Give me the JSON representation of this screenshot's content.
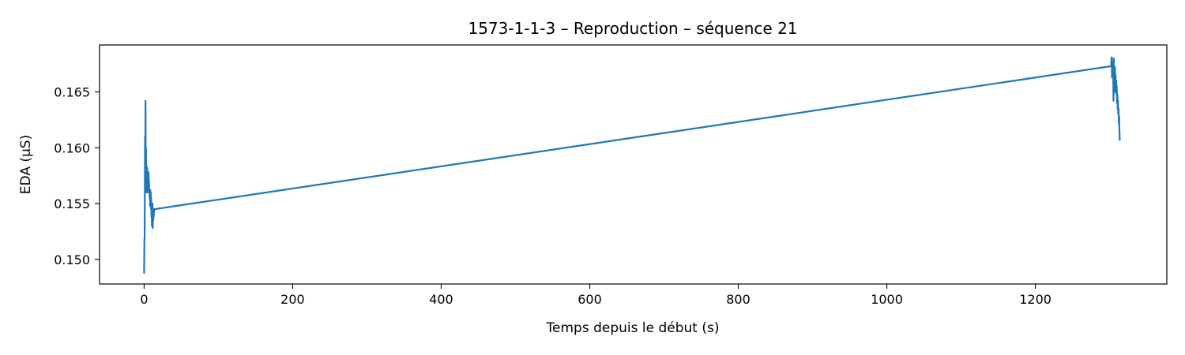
{
  "chart_data": {
    "type": "line",
    "title": "1573-1-1-3 – Reproduction – séquence 21",
    "xlabel": "Temps depuis le début (s)",
    "ylabel": "EDA (µS)",
    "xlim": [
      -60,
      1377
    ],
    "ylim": [
      0.1478,
      0.1692
    ],
    "xticks": [
      0,
      200,
      400,
      600,
      800,
      1000,
      1200
    ],
    "xtick_labels": [
      "0",
      "200",
      "400",
      "600",
      "800",
      "1000",
      "1200"
    ],
    "yticks": [
      0.15,
      0.155,
      0.16,
      0.165
    ],
    "ytick_labels": [
      "0.150",
      "0.155",
      "0.160",
      "0.165"
    ],
    "grid": false,
    "legend": "none",
    "series": [
      {
        "color": "#1f77b4",
        "x": [
          0.0,
          0.4,
          0.7,
          1.0,
          1.3,
          1.6,
          1.9,
          2.2,
          2.5,
          2.8,
          3.0,
          3.3,
          3.6,
          3.9,
          4.2,
          4.5,
          4.8,
          5.1,
          5.4,
          5.7,
          6.0,
          6.3,
          6.6,
          6.9,
          7.2,
          7.5,
          7.8,
          8.1,
          8.4,
          8.7,
          9.0,
          9.3,
          9.6,
          9.9,
          10.2,
          10.5,
          10.8,
          11.1,
          11.4,
          11.7,
          12.0,
          12.3,
          12.6,
          12.9,
          13.2,
          13.5,
          13.8,
          14.1,
          1302.0,
          1302.4,
          1302.8,
          1303.2,
          1303.6,
          1304.0,
          1304.4,
          1304.8,
          1305.2,
          1305.6,
          1306.0,
          1306.4,
          1306.8,
          1307.2,
          1307.6,
          1308.0,
          1308.4,
          1308.8,
          1309.2,
          1309.6,
          1310.0,
          1310.4,
          1310.8,
          1311.2,
          1311.6,
          1312.0,
          1312.4,
          1312.8,
          1313.2,
          1313.6
        ],
        "y": [
          0.1488,
          0.1518,
          0.1518,
          0.156,
          0.161,
          0.1575,
          0.1642,
          0.1565,
          0.16,
          0.1572,
          0.1585,
          0.156,
          0.1578,
          0.1565,
          0.1582,
          0.1562,
          0.1575,
          0.156,
          0.1572,
          0.1563,
          0.1578,
          0.1565,
          0.157,
          0.156,
          0.1562,
          0.1555,
          0.156,
          0.1548,
          0.1562,
          0.1552,
          0.156,
          0.1545,
          0.1555,
          0.1538,
          0.155,
          0.153,
          0.1545,
          0.1535,
          0.155,
          0.1528,
          0.1545,
          0.1535,
          0.1545,
          0.1538,
          0.1542,
          0.1543,
          0.1544,
          0.1545,
          0.1673,
          0.1678,
          0.1681,
          0.1663,
          0.1675,
          0.1668,
          0.1677,
          0.167,
          0.1642,
          0.168,
          0.165,
          0.1673,
          0.166,
          0.1672,
          0.165,
          0.1665,
          0.1655,
          0.166,
          0.1648,
          0.1655,
          0.164,
          0.1648,
          0.1635,
          0.1642,
          0.163,
          0.1635,
          0.1622,
          0.1628,
          0.1615,
          0.1607
        ]
      }
    ]
  }
}
